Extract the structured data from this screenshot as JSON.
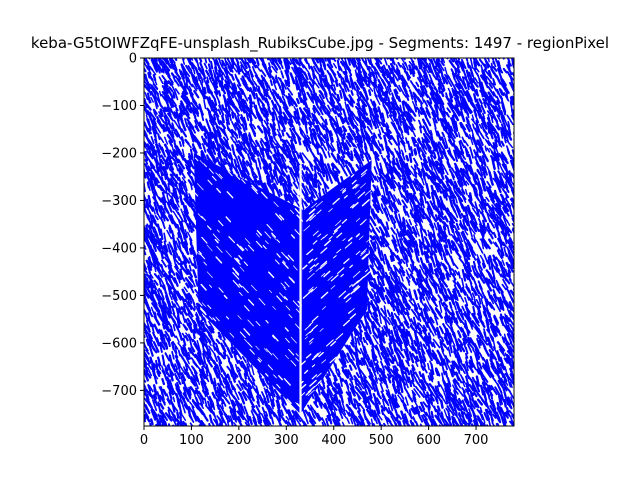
{
  "chart_data": {
    "type": "scatter",
    "title": "keba-G5tOIWFZqFE-unsplash_RubiksCube.jpg - Segments: 1497 - regionPixel",
    "xlabel": "",
    "ylabel": "",
    "xlim": [
      0,
      780
    ],
    "ylim": [
      -775,
      0
    ],
    "x_ticks": [
      0,
      100,
      200,
      300,
      400,
      500,
      600,
      700
    ],
    "y_ticks": [
      0,
      -100,
      -200,
      -300,
      -400,
      -500,
      -600,
      -700
    ],
    "x_tick_labels": [
      "0",
      "100",
      "200",
      "300",
      "400",
      "500",
      "600",
      "700"
    ],
    "y_tick_labels": [
      "0",
      "−100",
      "−200",
      "−300",
      "−400",
      "−500",
      "−600",
      "−700"
    ],
    "grid": false,
    "legend": "none",
    "series_color": "#0000ff",
    "segment_count": 1497,
    "background_texture": {
      "stroke_direction": [
        1,
        2.2
      ]
    },
    "cube": {
      "left_face": [
        [
          105,
          -200
        ],
        [
          335,
          -320
        ],
        [
          330,
          -750
        ],
        [
          115,
          -530
        ]
      ],
      "right_face": [
        [
          335,
          -320
        ],
        [
          480,
          -215
        ],
        [
          470,
          -530
        ],
        [
          330,
          -750
        ]
      ],
      "center_edge": [
        [
          330,
          -225
        ],
        [
          330,
          -750
        ]
      ]
    }
  }
}
